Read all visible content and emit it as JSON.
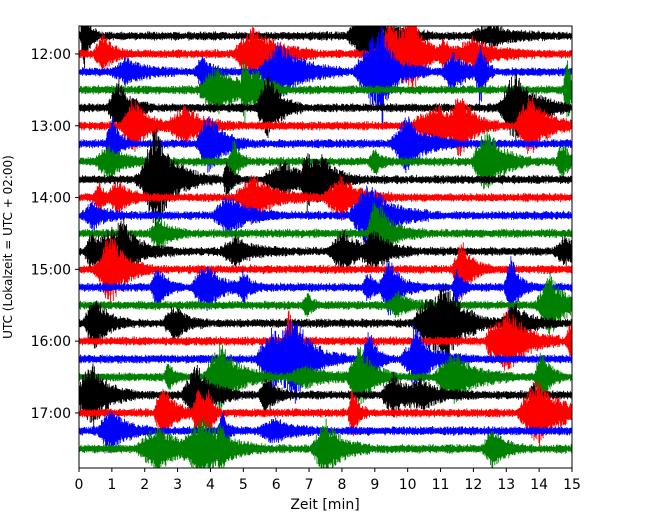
{
  "chart_data": {
    "type": "line",
    "title": "",
    "xlabel": "Zeit  [min]",
    "ylabel": "UTC (Lokalzeit = UTC + 02:00)",
    "xlim": [
      0,
      15
    ],
    "x_ticks": [
      0,
      1,
      2,
      3,
      4,
      5,
      6,
      7,
      8,
      9,
      10,
      11,
      12,
      13,
      14,
      15
    ],
    "y_tick_labels": [
      "12:00",
      "13:00",
      "14:00",
      "15:00",
      "16:00",
      "17:00"
    ],
    "trace_start": "11:45",
    "trace_interval_minutes": 15,
    "trace_count": 24,
    "color_cycle": [
      "#000000",
      "#ff0000",
      "#0000ff",
      "#008000"
    ],
    "grid": false,
    "legend": "none"
  }
}
